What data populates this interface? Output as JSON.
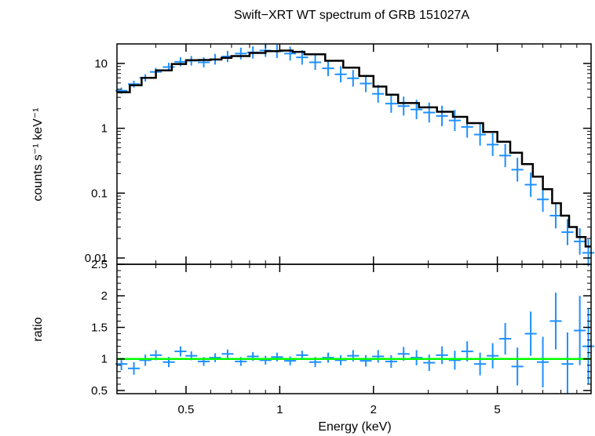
{
  "chart_data": [
    {
      "type": "scatter",
      "title": "Swift−XRT WT spectrum of GRB 151027A",
      "xlabel": "Energy (keV)",
      "ylabel": "counts s⁻¹ keV⁻¹",
      "xscale": "log",
      "yscale": "log",
      "xlim": [
        0.3,
        10
      ],
      "ylim": [
        0.008,
        20
      ],
      "yticks": [
        0.01,
        0.1,
        1,
        10
      ],
      "ytick_labels": [
        "0.01",
        "0.1",
        "1",
        "10"
      ],
      "colors": {
        "data": "#1e90ff",
        "model": "#000000"
      },
      "series": [
        {
          "role": "data",
          "x": [
            0.31,
            0.34,
            0.37,
            0.4,
            0.44,
            0.48,
            0.52,
            0.57,
            0.62,
            0.68,
            0.75,
            0.82,
            0.9,
            0.98,
            1.08,
            1.18,
            1.3,
            1.43,
            1.57,
            1.72,
            1.89,
            2.07,
            2.28,
            2.5,
            2.75,
            3.02,
            3.32,
            3.65,
            4.0,
            4.4,
            4.83,
            5.3,
            5.8,
            6.4,
            7.0,
            7.7,
            8.4,
            9.2,
            9.8
          ],
          "y": [
            3.8,
            4.8,
            6.0,
            7.4,
            8.8,
            10.6,
            11.0,
            10.4,
            11.6,
            12.8,
            14.2,
            14.8,
            15.8,
            15.4,
            14.2,
            12.4,
            10.4,
            8.4,
            6.8,
            5.9,
            4.9,
            3.4,
            2.4,
            2.2,
            1.95,
            1.75,
            1.55,
            1.32,
            1.05,
            0.8,
            0.56,
            0.38,
            0.23,
            0.135,
            0.08,
            0.045,
            0.025,
            0.018,
            0.012
          ]
        },
        {
          "role": "model",
          "x": [
            0.3,
            0.33,
            0.36,
            0.4,
            0.45,
            0.5,
            0.55,
            0.6,
            0.65,
            0.7,
            0.8,
            0.9,
            1.0,
            1.1,
            1.2,
            1.4,
            1.6,
            1.8,
            2.0,
            2.2,
            2.4,
            2.8,
            3.2,
            3.6,
            4.0,
            4.5,
            5.0,
            5.5,
            6.0,
            6.5,
            7.0,
            7.5,
            8.0,
            8.5,
            9.0,
            9.6,
            10.0
          ],
          "y": [
            3.6,
            4.6,
            6.0,
            7.8,
            9.8,
            11.2,
            11.3,
            11.5,
            12.2,
            13.0,
            14.5,
            15.5,
            15.8,
            15.1,
            13.8,
            11.0,
            8.6,
            6.4,
            4.4,
            3.3,
            2.45,
            2.1,
            1.8,
            1.5,
            1.2,
            0.88,
            0.62,
            0.42,
            0.28,
            0.18,
            0.115,
            0.07,
            0.045,
            0.03,
            0.021,
            0.015,
            0.012
          ]
        }
      ]
    },
    {
      "type": "scatter",
      "xlabel": "Energy (keV)",
      "ylabel": "ratio",
      "xscale": "log",
      "xlim": [
        0.3,
        10
      ],
      "ylim": [
        0.45,
        2.5
      ],
      "xticks": [
        0.5,
        1,
        2,
        5
      ],
      "xtick_labels": [
        "0.5",
        "1",
        "2",
        "5"
      ],
      "yticks": [
        0.5,
        1,
        1.5,
        2,
        2.5
      ],
      "ytick_labels": [
        "0.5",
        "1",
        "1.5",
        "2",
        "2.5"
      ],
      "reference_line": {
        "y": 1,
        "color": "#00ff00"
      },
      "colors": {
        "data": "#1e90ff"
      },
      "series": [
        {
          "role": "ratio",
          "x": [
            0.31,
            0.34,
            0.37,
            0.4,
            0.44,
            0.48,
            0.52,
            0.57,
            0.62,
            0.68,
            0.75,
            0.82,
            0.9,
            0.98,
            1.08,
            1.18,
            1.3,
            1.43,
            1.57,
            1.72,
            1.89,
            2.07,
            2.28,
            2.5,
            2.75,
            3.02,
            3.32,
            3.65,
            4.0,
            4.4,
            4.83,
            5.3,
            5.8,
            6.4,
            7.0,
            7.7,
            8.4,
            9.2,
            9.8
          ],
          "y": [
            0.92,
            0.85,
            0.98,
            1.06,
            0.95,
            1.12,
            1.05,
            0.96,
            1.02,
            1.08,
            0.96,
            1.04,
            0.98,
            1.03,
            0.97,
            1.06,
            0.95,
            1.02,
            0.98,
            1.05,
            0.97,
            1.04,
            0.96,
            1.08,
            1.02,
            0.94,
            1.06,
            0.98,
            1.12,
            0.92,
            1.05,
            1.32,
            0.88,
            1.4,
            0.95,
            1.6,
            0.92,
            1.45,
            1.2
          ],
          "yerr": [
            0.1,
            0.1,
            0.09,
            0.08,
            0.08,
            0.08,
            0.07,
            0.07,
            0.07,
            0.07,
            0.07,
            0.07,
            0.07,
            0.07,
            0.07,
            0.07,
            0.08,
            0.08,
            0.08,
            0.09,
            0.09,
            0.1,
            0.1,
            0.11,
            0.12,
            0.13,
            0.14,
            0.15,
            0.16,
            0.18,
            0.2,
            0.25,
            0.3,
            0.35,
            0.4,
            0.45,
            0.5,
            0.55,
            0.6
          ]
        }
      ]
    }
  ]
}
